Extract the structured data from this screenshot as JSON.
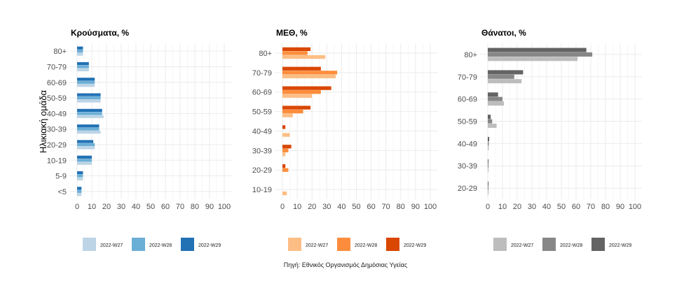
{
  "y_axis_title": "Ηλικιακή ομάδα",
  "source": "Πηγή: Εθνικός Οργανισμός Δημόσιας Υγείας",
  "x_ticks": [
    0,
    10,
    20,
    30,
    40,
    50,
    60,
    70,
    80,
    90,
    100
  ],
  "chart_data": [
    {
      "type": "bar",
      "orientation": "horizontal",
      "title": "Κρούσματα, %",
      "categories": [
        "80+",
        "70-79",
        "60-69",
        "50-59",
        "40-49",
        "30-39",
        "20-29",
        "10-19",
        "5-9",
        "<5"
      ],
      "series": [
        {
          "name": "2022-W27",
          "color": "#bcd4e6",
          "values": [
            4,
            8,
            12,
            16,
            18,
            16,
            12,
            10,
            4,
            3
          ]
        },
        {
          "name": "2022-W28",
          "color": "#6baed6",
          "values": [
            4,
            8,
            12,
            16,
            17,
            15,
            12,
            10,
            4,
            3
          ]
        },
        {
          "name": "2022-W29",
          "color": "#2171b5",
          "values": [
            4,
            8,
            12,
            16,
            17,
            15,
            11,
            10,
            4,
            3
          ]
        }
      ],
      "xlim": [
        0,
        100
      ],
      "legend": "bottom",
      "grid": true
    },
    {
      "type": "bar",
      "orientation": "horizontal",
      "title": "ΜΕΘ, %",
      "categories": [
        "80+",
        "70-79",
        "60-69",
        "50-59",
        "40-49",
        "30-39",
        "20-29",
        "10-19"
      ],
      "series": [
        {
          "name": "2022-W27",
          "color": "#fdbe85",
          "values": [
            29,
            36,
            20,
            7,
            5,
            2,
            0,
            3
          ]
        },
        {
          "name": "2022-W28",
          "color": "#fd8d3c",
          "values": [
            17,
            37,
            26,
            14,
            0,
            4,
            4,
            0
          ]
        },
        {
          "name": "2022-W29",
          "color": "#d94701",
          "values": [
            19,
            26,
            33,
            19,
            2,
            6,
            2,
            0
          ]
        }
      ],
      "xlim": [
        0,
        100
      ],
      "legend": "bottom",
      "grid": true
    },
    {
      "type": "bar",
      "orientation": "horizontal",
      "title": "Θάνατοι, %",
      "categories": [
        "80+",
        "70-79",
        "60-69",
        "50-59",
        "40-49",
        "30-39",
        "20-29"
      ],
      "series": [
        {
          "name": "2022-W27",
          "color": "#bdbdbd",
          "values": [
            61,
            23,
            11,
            6,
            0.7,
            0.5,
            0.5
          ]
        },
        {
          "name": "2022-W28",
          "color": "#878787",
          "values": [
            71,
            18,
            10,
            3,
            0.7,
            0.5,
            0.5
          ]
        },
        {
          "name": "2022-W29",
          "color": "#636363",
          "values": [
            67,
            24,
            7,
            2,
            1,
            0.5,
            0.5
          ]
        }
      ],
      "xlim": [
        0,
        100
      ],
      "legend": "bottom",
      "grid": true
    }
  ]
}
